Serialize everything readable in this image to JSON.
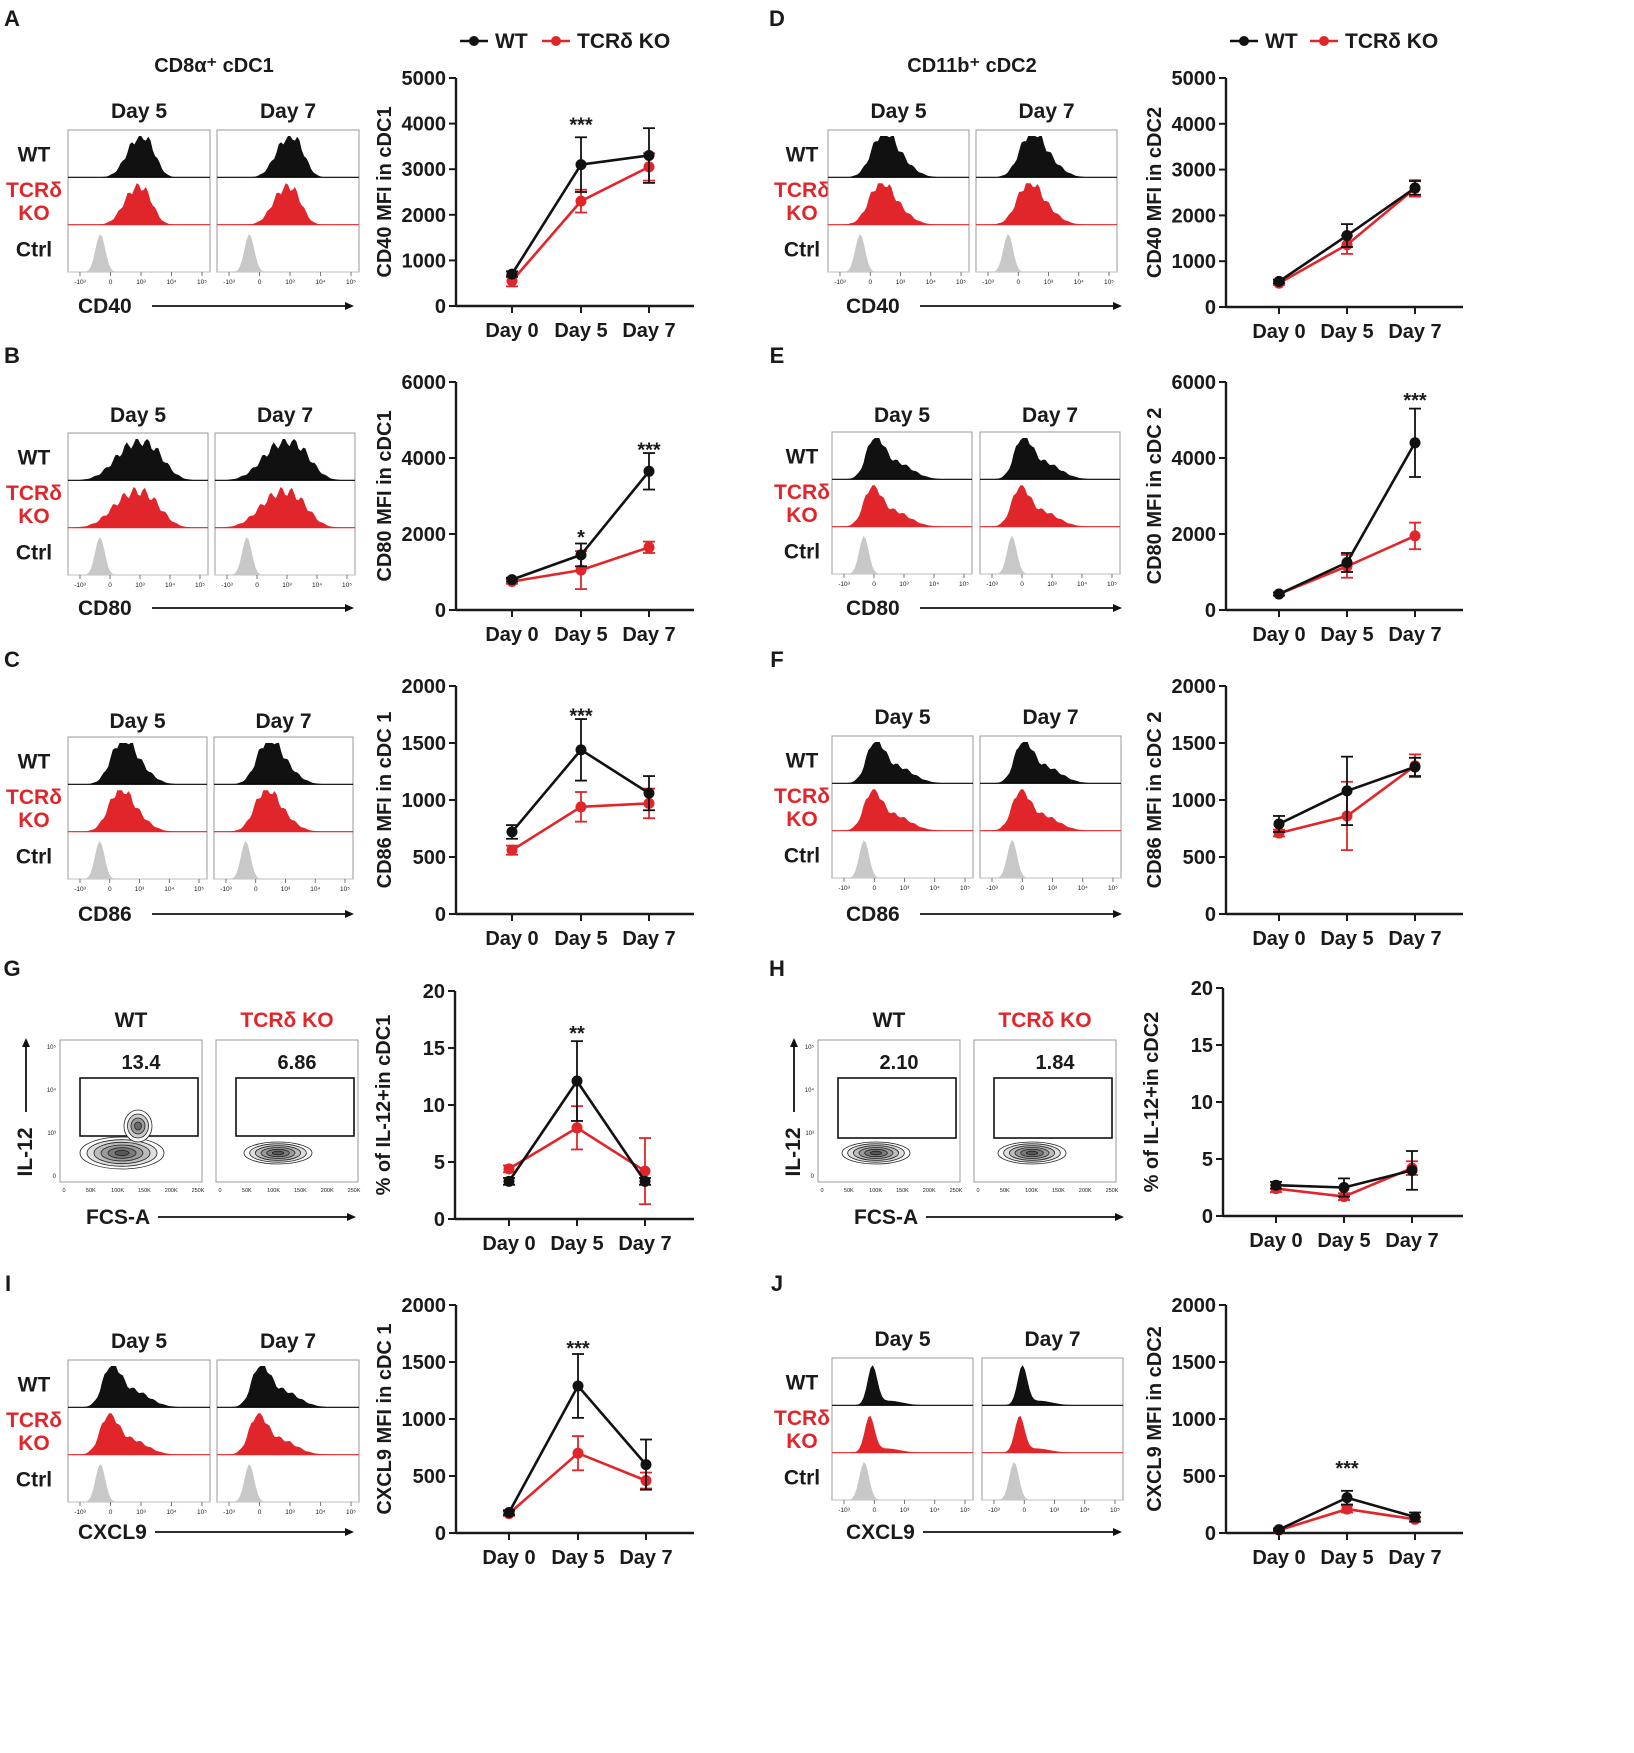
{
  "colors": {
    "wt": "#111111",
    "ko": "#e0262a",
    "ctrl": "#c8c8c8"
  },
  "legend": {
    "wt": "WT",
    "ko": "TCRδ KO"
  },
  "flow_labels": {
    "row_wt": "WT",
    "row_ko_line1": "TCRδ",
    "row_ko_line2": "KO",
    "row_ctrl": "Ctrl",
    "day5": "Day 5",
    "day7": "Day 7",
    "fcs": "FCS-A",
    "il12": "IL-12",
    "hist_ticks": [
      "-10³",
      "0",
      "10³",
      "10⁴",
      "10⁵"
    ],
    "fcs_ticks": [
      "0",
      "50K",
      "100K",
      "150K",
      "200K",
      "250K"
    ],
    "il12_ticks": [
      "0",
      "10³",
      "10⁴",
      "10⁵"
    ]
  },
  "headers": {
    "left": "CD8α⁺ cDC1",
    "right": "CD11b⁺ cDC2"
  },
  "hist_panels": [
    {
      "letter": "A",
      "marker": "CD40",
      "shape": "mid"
    },
    {
      "letter": "B",
      "marker": "CD80",
      "shape": "broad"
    },
    {
      "letter": "C",
      "marker": "CD86",
      "shape": "low"
    },
    {
      "letter": "I",
      "marker": "CXCL9",
      "shape": "skew"
    },
    {
      "letter": "D",
      "marker": "CD40",
      "shape": "low"
    },
    {
      "letter": "E",
      "marker": "CD80",
      "shape": "skew"
    },
    {
      "letter": "F",
      "marker": "CD86",
      "shape": "skew"
    },
    {
      "letter": "J",
      "marker": "CXCL9",
      "shape": "spike"
    }
  ],
  "contour_panels": [
    {
      "letter": "G",
      "wt_label": "WT",
      "ko_label": "TCRδ KO",
      "wt_value": "13.4",
      "ko_value": "6.86"
    },
    {
      "letter": "H",
      "wt_label": "WT",
      "ko_label": "TCRδ KO",
      "wt_value": "2.10",
      "ko_value": "1.84"
    }
  ],
  "chart_data": [
    {
      "id": "A",
      "type": "line",
      "ylabel": "CD40 MFI in cDC1",
      "categories": [
        "Day 0",
        "Day 5",
        "Day 7"
      ],
      "ylim": [
        0,
        5000
      ],
      "yticks": [
        0,
        1000,
        2000,
        3000,
        4000,
        5000
      ],
      "series": [
        {
          "name": "WT",
          "values": [
            700,
            3100,
            3300
          ],
          "errors": [
            60,
            600,
            600
          ]
        },
        {
          "name": "TCRδ KO",
          "values": [
            550,
            2300,
            3050
          ],
          "errors": [
            120,
            250,
            300
          ]
        }
      ],
      "annotations": [
        {
          "category": "Day 5",
          "text": "***",
          "at": 4000
        }
      ]
    },
    {
      "id": "B",
      "type": "line",
      "ylabel": "CD80 MFI in cDC1",
      "categories": [
        "Day 0",
        "Day 5",
        "Day 7"
      ],
      "ylim": [
        0,
        6000
      ],
      "yticks": [
        0,
        2000,
        4000,
        6000
      ],
      "series": [
        {
          "name": "WT",
          "values": [
            800,
            1450,
            3650
          ],
          "errors": [
            50,
            300,
            480
          ]
        },
        {
          "name": "TCRδ KO",
          "values": [
            750,
            1050,
            1650
          ],
          "errors": [
            60,
            500,
            150
          ]
        }
      ],
      "annotations": [
        {
          "category": "Day 5",
          "text": "*",
          "at": 1950
        },
        {
          "category": "Day 7",
          "text": "***",
          "at": 4250
        }
      ]
    },
    {
      "id": "C",
      "type": "line",
      "ylabel": "CD86 MFI in cDC 1",
      "categories": [
        "Day 0",
        "Day 5",
        "Day 7"
      ],
      "ylim": [
        0,
        2000
      ],
      "yticks": [
        0,
        500,
        1000,
        1500,
        2000
      ],
      "series": [
        {
          "name": "WT",
          "values": [
            720,
            1440,
            1060
          ],
          "errors": [
            60,
            270,
            150
          ]
        },
        {
          "name": "TCRδ KO",
          "values": [
            560,
            940,
            970
          ],
          "errors": [
            40,
            130,
            130
          ]
        }
      ],
      "annotations": [
        {
          "category": "Day 5",
          "text": "***",
          "at": 1750
        }
      ]
    },
    {
      "id": "G",
      "type": "line",
      "ylabel": "% of IL-12+in cDC1",
      "categories": [
        "Day 0",
        "Day 5",
        "Day 7"
      ],
      "ylim": [
        0,
        20
      ],
      "yticks": [
        0,
        5,
        10,
        15,
        20
      ],
      "series": [
        {
          "name": "WT",
          "values": [
            3.3,
            12.1,
            3.3
          ],
          "errors": [
            0.3,
            3.5,
            0.3
          ]
        },
        {
          "name": "TCRδ KO",
          "values": [
            4.4,
            8.0,
            4.2
          ],
          "errors": [
            0.3,
            1.9,
            2.9
          ]
        }
      ],
      "annotations": [
        {
          "category": "Day 5",
          "text": "**",
          "at": 16.4
        }
      ]
    },
    {
      "id": "I",
      "type": "line",
      "ylabel": "CXCL9 MFI in cDC 1",
      "categories": [
        "Day 0",
        "Day 5",
        "Day 7"
      ],
      "ylim": [
        0,
        2000
      ],
      "yticks": [
        0,
        500,
        1000,
        1500,
        2000
      ],
      "series": [
        {
          "name": "WT",
          "values": [
            180,
            1290,
            600
          ],
          "errors": [
            20,
            280,
            220
          ]
        },
        {
          "name": "TCRδ KO",
          "values": [
            170,
            700,
            460
          ],
          "errors": [
            20,
            150,
            70
          ]
        }
      ],
      "annotations": [
        {
          "category": "Day 5",
          "text": "***",
          "at": 1630
        }
      ]
    },
    {
      "id": "D",
      "type": "line",
      "ylabel": "CD40 MFI in cDC2",
      "categories": [
        "Day 0",
        "Day 5",
        "Day 7"
      ],
      "ylim": [
        0,
        5000
      ],
      "yticks": [
        0,
        1000,
        2000,
        3000,
        4000,
        5000
      ],
      "series": [
        {
          "name": "WT",
          "values": [
            560,
            1560,
            2600
          ],
          "errors": [
            40,
            250,
            150
          ]
        },
        {
          "name": "TCRδ KO",
          "values": [
            520,
            1360,
            2590
          ],
          "errors": [
            40,
            200,
            180
          ]
        }
      ],
      "annotations": []
    },
    {
      "id": "E",
      "type": "line",
      "ylabel": "CD80 MFI in cDC 2",
      "categories": [
        "Day 0",
        "Day 5",
        "Day 7"
      ],
      "ylim": [
        0,
        6000
      ],
      "yticks": [
        0,
        2000,
        4000,
        6000
      ],
      "series": [
        {
          "name": "WT",
          "values": [
            420,
            1250,
            4400
          ],
          "errors": [
            40,
            250,
            900
          ]
        },
        {
          "name": "TCRδ KO",
          "values": [
            420,
            1150,
            1950
          ],
          "errors": [
            40,
            300,
            350
          ]
        }
      ],
      "annotations": [
        {
          "category": "Day 7",
          "text": "***",
          "at": 5550
        }
      ]
    },
    {
      "id": "F",
      "type": "line",
      "ylabel": "CD86 MFI in cDC 2",
      "categories": [
        "Day 0",
        "Day 5",
        "Day 7"
      ],
      "ylim": [
        0,
        2000
      ],
      "yticks": [
        0,
        500,
        1000,
        1500,
        2000
      ],
      "series": [
        {
          "name": "WT",
          "values": [
            790,
            1080,
            1290
          ],
          "errors": [
            70,
            300,
            80
          ]
        },
        {
          "name": "TCRδ KO",
          "values": [
            710,
            860,
            1300
          ],
          "errors": [
            30,
            300,
            100
          ]
        }
      ],
      "annotations": []
    },
    {
      "id": "H",
      "type": "line",
      "ylabel": "% of IL-12+in cDC2",
      "categories": [
        "Day 0",
        "Day 5",
        "Day 7"
      ],
      "ylim": [
        0,
        20
      ],
      "yticks": [
        0,
        5,
        10,
        15,
        20
      ],
      "series": [
        {
          "name": "WT",
          "values": [
            2.7,
            2.5,
            4.0
          ],
          "errors": [
            0.3,
            0.8,
            1.7
          ]
        },
        {
          "name": "TCRδ KO",
          "values": [
            2.4,
            1.7,
            4.2
          ],
          "errors": [
            0.3,
            0.3,
            0.6
          ]
        }
      ],
      "annotations": []
    },
    {
      "id": "J",
      "type": "line",
      "ylabel": "CXCL9 MFI in cDC2",
      "categories": [
        "Day 0",
        "Day 5",
        "Day 7"
      ],
      "ylim": [
        0,
        2000
      ],
      "yticks": [
        0,
        500,
        1000,
        1500,
        2000
      ],
      "series": [
        {
          "name": "WT",
          "values": [
            30,
            310,
            140
          ],
          "errors": [
            10,
            60,
            40
          ]
        },
        {
          "name": "TCRδ KO",
          "values": [
            25,
            210,
            120
          ],
          "errors": [
            10,
            30,
            20
          ]
        }
      ],
      "annotations": [
        {
          "category": "Day 5",
          "text": "***",
          "at": 580
        }
      ]
    }
  ]
}
